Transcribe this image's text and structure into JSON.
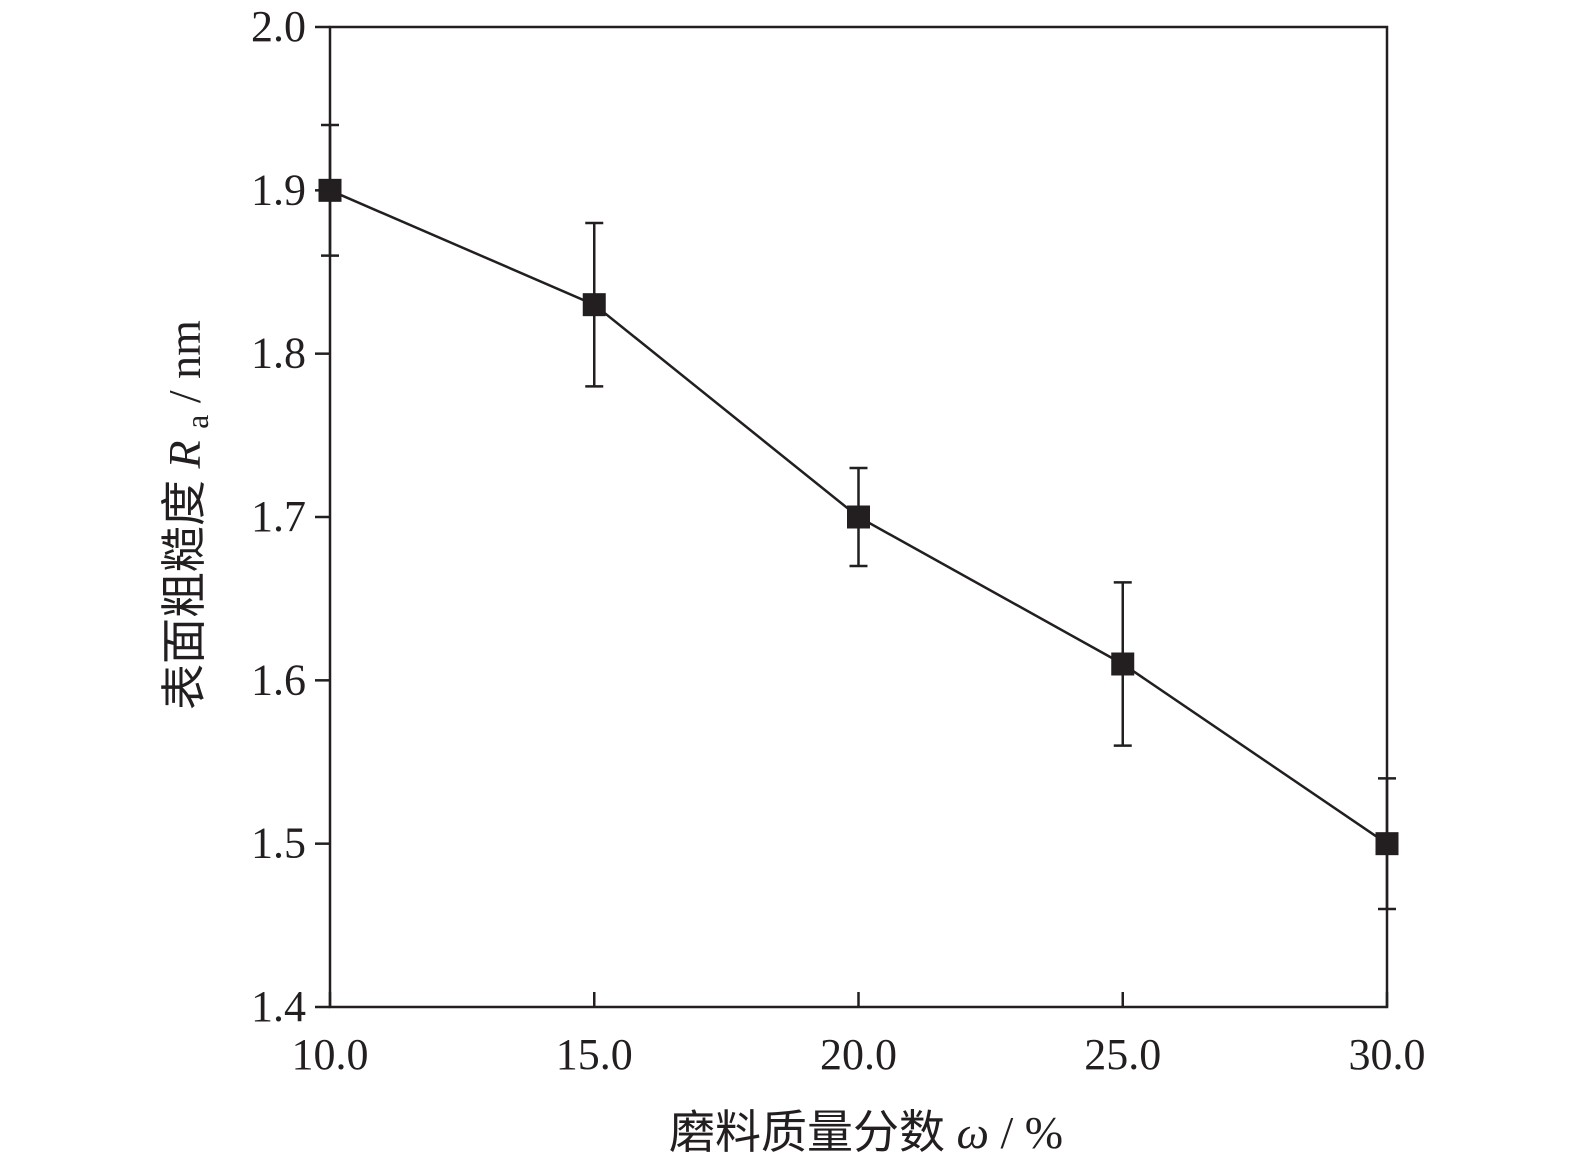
{
  "chart_data": {
    "type": "line",
    "title": "",
    "x": [
      10.0,
      15.0,
      20.0,
      25.0,
      30.0
    ],
    "xlim": [
      10.0,
      30.0
    ],
    "x_ticks": [
      "10.0",
      "15.0",
      "20.0",
      "25.0",
      "30.0"
    ],
    "ylim": [
      1.4,
      2.0
    ],
    "y_ticks": [
      "1.4",
      "1.5",
      "1.6",
      "1.7",
      "1.8",
      "1.9",
      "2.0"
    ],
    "xlabel": {
      "main": "磨料质量分数",
      "symbol": "ω",
      "unit": " / %"
    },
    "ylabel": {
      "main": "表面粗糙度",
      "symbol": "R",
      "subscript": "a",
      "unit": " / nm"
    },
    "series": [
      {
        "values": [
          1.9,
          1.83,
          1.7,
          1.61,
          1.5
        ],
        "error_upper": [
          1.94,
          1.88,
          1.73,
          1.66,
          1.54
        ],
        "error_lower": [
          1.86,
          1.78,
          1.67,
          1.56,
          1.46
        ],
        "marker": "square",
        "color": "#231f20"
      }
    ],
    "grid": false,
    "legend": "none"
  }
}
